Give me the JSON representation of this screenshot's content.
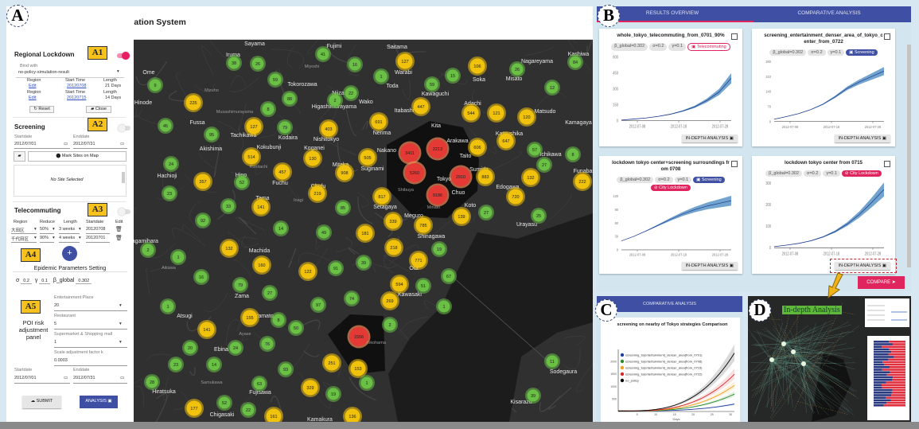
{
  "header": {
    "title": "Epidemic Control Simulation System"
  },
  "annotations": {
    "A": "A",
    "A1": "A1",
    "A2": "A2",
    "A3": "A3",
    "A4": "A4",
    "A5": "A5",
    "B": "B",
    "C": "C",
    "D": "D"
  },
  "lockdown": {
    "title": "Regional Lockdown",
    "enabled": true,
    "bind_label": "Bind with",
    "bind_value": "no-policy-simulation-result",
    "rows": [
      {
        "region_label": "Region",
        "region": "Edit",
        "start_label": "Start Time",
        "start": "20120708",
        "length_label": "Length",
        "length": "21 Days"
      },
      {
        "region_label": "Region",
        "region": "Edit",
        "start_label": "Start Time",
        "start": "20120715",
        "length_label": "Length",
        "length": "14 Days"
      }
    ],
    "reset": "Reset",
    "close": "Close"
  },
  "screening": {
    "title": "Screening",
    "enabled": false,
    "start_label": "Startdate",
    "start": "2012/07/01",
    "end_label": "Enddate",
    "end": "2012/07/31",
    "mark_sites": "Mark Sites on Map",
    "empty": "No Site Selected"
  },
  "telecommuting": {
    "title": "Telecommuting",
    "enabled": false,
    "headers": [
      "Region",
      "Reduce",
      "Length",
      "Startdate",
      "Edit"
    ],
    "rows": [
      {
        "region": "大田区",
        "reduce": "50%",
        "length": "3 weeks",
        "start": "20120708"
      },
      {
        "region": "千代田区",
        "reduce": "90%",
        "length": "4 weeks",
        "start": "20120701"
      }
    ]
  },
  "params": {
    "title": "Epidemic Parameters Setting",
    "sigma_label": "σ",
    "sigma": "0.2",
    "gamma_label": "γ",
    "gamma": "0.1",
    "beta_label": "β_global",
    "beta": "0.302"
  },
  "poi": {
    "panel_label": "POI risk adjustment panel",
    "fields": [
      {
        "label": "Entertainment Place",
        "value": "20"
      },
      {
        "label": "Restaurant",
        "value": "5"
      },
      {
        "label": "Supermarket & Shopping mall",
        "value": "1"
      },
      {
        "label": "Scale adjustment factor k",
        "value": "0.0003"
      }
    ],
    "start_label": "Startdate",
    "start": "2012/07/01",
    "end_label": "Enddate",
    "end": "2012/07/31",
    "submit": "SUBMIT",
    "analysis": "ANALYSIS"
  },
  "map": {
    "clusters": [
      9,
      38,
      26,
      41,
      16,
      59,
      225,
      88,
      8,
      2,
      22,
      45,
      95,
      127,
      79,
      403,
      24,
      514,
      130,
      457,
      908,
      357,
      52,
      219,
      23,
      33,
      141,
      85,
      92,
      14,
      127,
      1,
      106,
      26,
      84,
      15,
      59,
      12,
      447,
      544,
      121,
      120,
      691,
      3411,
      2213,
      606,
      647,
      57,
      8,
      505,
      27,
      5260,
      2910,
      883,
      132,
      222,
      817,
      9186,
      720,
      139,
      27,
      25,
      339,
      785,
      181,
      218,
      19,
      39,
      771,
      91,
      122,
      160,
      49,
      67,
      594,
      51,
      2,
      132,
      1,
      16,
      79,
      27,
      97,
      74,
      1,
      155,
      8,
      50,
      141,
      1556,
      20,
      24,
      76,
      23,
      14,
      93,
      251,
      153,
      28,
      63,
      329,
      19,
      177,
      52,
      22,
      161,
      136,
      269,
      2,
      1,
      1,
      11,
      39
    ],
    "places": [
      "Sayama",
      "Iruma",
      "Ome",
      "Fujimi",
      "Miyoshi",
      "Tokorozawa",
      "Mizuho",
      "Higashimurayama",
      "Niiza",
      "Hinode",
      "Musashimurayama",
      "Fussa",
      "Tachikawa",
      "Kodaira",
      "Nishitokyo",
      "Akishima",
      "Kokubunji",
      "Koganei",
      "Kunitachi",
      "Mitaka",
      "Hachioji",
      "Hino",
      "Fuchu",
      "Chofu",
      "Tama",
      "Inagi",
      "Saitama",
      "Warabi",
      "Toda",
      "Kawaguchi",
      "Soka",
      "Nagareyama",
      "Misato",
      "Kashiwa",
      "Itabashi",
      "Adachi",
      "Matsudo",
      "Nerima",
      "Kita",
      "Kamagaya",
      "Katsushika",
      "Arakawa",
      "Nakano",
      "Taito",
      "Ichikawa",
      "Suginami",
      "Sumida",
      "Tokyo",
      "Funabashi",
      "Edogawa",
      "Shibuya",
      "Chuo",
      "Setagaya",
      "Minato",
      "Koto",
      "Urayasu",
      "Meguro",
      "Shinagawa",
      "Ota",
      "Kawasaki",
      "Wako",
      "Sagamihara",
      "Machida",
      "Aikawa",
      "Zama",
      "Atsugi",
      "Yamato",
      "Ayase",
      "Ebina",
      "Samukawa",
      "Hiratsuka",
      "Fujisawa",
      "Chigasaki",
      "Kamakura",
      "Yokohama",
      "Sodegaura",
      "Kisarazu"
    ],
    "colors": {
      "low": "#6abf45",
      "mid": "#f0c20c",
      "high": "#e53935"
    }
  },
  "results": {
    "tabs": [
      "RESULTS OVERVIEW",
      "COMPARATIVE ANALYSIS"
    ],
    "cards": [
      {
        "title": "whole_tokyo_telecommuting_from_0701_90%",
        "badges": [
          {
            "t": "β_global=0.302",
            "k": ""
          },
          {
            "t": "σ=0.2",
            "k": ""
          },
          {
            "t": "γ=0.1",
            "k": ""
          },
          {
            "t": "Telecommuting",
            "k": "pink"
          }
        ],
        "yticks": [
          0,
          150,
          300,
          450,
          600
        ],
        "xticks": [
          "2012-07-08",
          "2012-07-18",
          "2012-07-28"
        ],
        "mean": [
          5,
          15,
          25,
          40,
          60,
          90,
          130,
          190,
          270,
          400
        ],
        "spread": 0.12,
        "button": "IN-DEPTH ANALYSIS"
      },
      {
        "title": "screening_entertainment_denser_area_of_tokyo_center_from_0722",
        "badges": [
          {
            "t": "β_global=0.302",
            "k": ""
          },
          {
            "t": "σ=0.2",
            "k": ""
          },
          {
            "t": "γ=0.1",
            "k": ""
          },
          {
            "t": "Screening",
            "k": "blue"
          }
        ],
        "yticks": [
          0,
          70,
          140,
          210,
          280
        ],
        "xticks": [
          "2012-07-08",
          "2012-07-18",
          "2012-07-28"
        ],
        "mean": [
          10,
          22,
          36,
          55,
          80,
          115,
          155,
          185,
          210,
          235
        ],
        "spread": 0.08,
        "button": "IN-DEPTH ANALYSIS"
      },
      {
        "title": "lockdown tokyo center+screening surroundings from 0708",
        "badges": [
          {
            "t": "β_global=0.302",
            "k": ""
          },
          {
            "t": "σ=0.2",
            "k": ""
          },
          {
            "t": "γ=0.1",
            "k": ""
          },
          {
            "t": "Screening",
            "k": "blue"
          },
          {
            "t": "City Lockdown",
            "k": "red"
          }
        ],
        "yticks": [
          0,
          30,
          60,
          90,
          120
        ],
        "xticks": [
          "2012-07-08",
          "2012-07-18",
          "2012-07-28"
        ],
        "mean": [
          20,
          30,
          42,
          55,
          68,
          80,
          90,
          98,
          104,
          110
        ],
        "spread": 0.1,
        "button": "IN-DEPTH ANALYSIS"
      },
      {
        "title": "lockdown tokyo center from 0715",
        "badges": [
          {
            "t": "β_global=0.302",
            "k": ""
          },
          {
            "t": "σ=0.2",
            "k": ""
          },
          {
            "t": "γ=0.1",
            "k": ""
          },
          {
            "t": "City Lockdown",
            "k": "red"
          }
        ],
        "yticks": [
          0,
          100,
          200,
          300
        ],
        "xticks": [
          "2012-07-08",
          "2012-07-18",
          "2012-07-28"
        ],
        "mean": [
          5,
          12,
          20,
          32,
          50,
          75,
          110,
          155,
          210,
          270
        ],
        "spread": 0.12,
        "button": "IN-DEPTH ANALYSIS"
      }
    ],
    "compare": "COMPARE"
  },
  "comparative": {
    "header": "COMPARATIVE ANALYSIS",
    "chart_data": {
      "type": "line",
      "title": "screening on nearby of Tokyo strategies Comparison",
      "xlabel": "Days",
      "xticks": [
        5,
        10,
        15,
        20,
        25,
        30
      ],
      "yticks": [
        500,
        1000,
        1500,
        2000
      ],
      "series": [
        {
          "name": "screening_to(entertainment)_denser_area(from_0701)",
          "color": "#1f3f9f",
          "end": 300
        },
        {
          "name": "screening_to(entertainment)_denser_area(from_0708)",
          "color": "#2a8a2a",
          "end": 700
        },
        {
          "name": "screening_to(entertainment)_denser_area(from_0715)",
          "color": "#f0a020",
          "end": 1050
        },
        {
          "name": "screening_to(entertainment)_denser_area(from_0722)",
          "color": "#d82828",
          "end": 1500
        },
        {
          "name": "no_policy",
          "color": "#000000",
          "end": 2350
        }
      ]
    }
  },
  "indepth": {
    "title": "In-depth Analysis"
  }
}
